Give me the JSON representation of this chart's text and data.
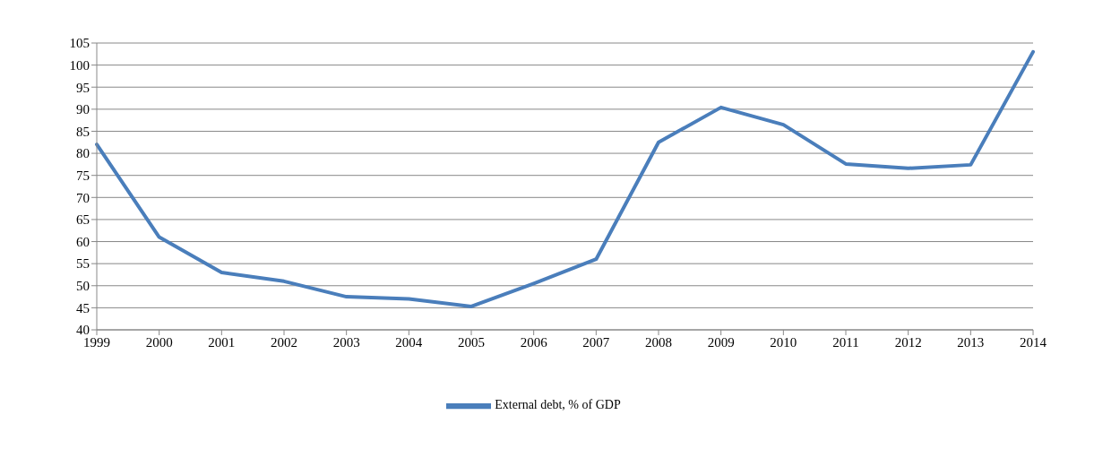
{
  "chart_data": {
    "type": "line",
    "categories": [
      "1999",
      "2000",
      "2001",
      "2002",
      "2003",
      "2004",
      "2005",
      "2006",
      "2007",
      "2008",
      "2009",
      "2010",
      "2011",
      "2012",
      "2013",
      "2014"
    ],
    "series": [
      {
        "name": "External debt, % of GDP",
        "color": "#4a7ebb",
        "values": [
          82,
          61,
          53,
          51,
          47.5,
          47,
          45.3,
          50.5,
          56,
          82.5,
          90.4,
          86.5,
          77.6,
          76.6,
          77.4,
          103
        ]
      }
    ],
    "ylim": [
      40,
      105
    ],
    "yticks": [
      40,
      45,
      50,
      55,
      60,
      65,
      70,
      75,
      80,
      85,
      90,
      95,
      100,
      105
    ],
    "grid": "y",
    "legend": "bottom",
    "marker": "none"
  }
}
